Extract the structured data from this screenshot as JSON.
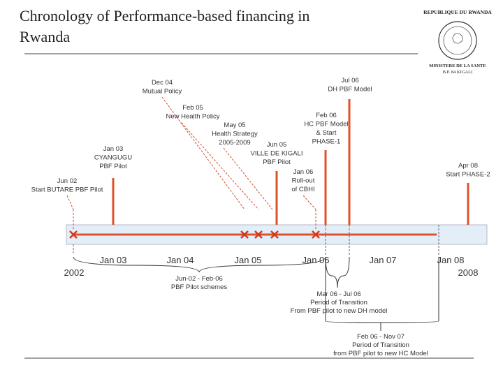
{
  "title": "Chronology of Performance-based financing in Rwanda",
  "emblem": {
    "top": "REPUBLIQUE DU RWANDA",
    "ministry": "MINISTERE DE LA SANTE",
    "address": "B.P. 84 KIGALI"
  },
  "events": [
    [
      "Jun 02",
      "Start BUTARE PBF Pilot"
    ],
    [
      "Jan 03",
      "CYANGUGU",
      "PBF Pilot"
    ],
    [
      "Dec 04",
      "Mutual Policy"
    ],
    [
      "Feb 05",
      "New Health Policy"
    ],
    [
      "May 05",
      "Health Strategy",
      "2005-2009"
    ],
    [
      "Jun 05",
      "VILLE DE KIGALI",
      "PBF Pilot"
    ],
    [
      "Jan 06",
      "Roll-out",
      "of CBHI"
    ],
    [
      "Feb 06",
      "HC PBF Model",
      "& Start",
      "PHASE-1"
    ],
    [
      "Jul 06",
      "DH PBF Model"
    ],
    [
      "Apr 08",
      "Start PHASE-2"
    ]
  ],
  "axis_labels": [
    "Jan 03",
    "Jan 04",
    "Jan 05",
    "Jan 06",
    "Jan 07",
    "Jan 08"
  ],
  "year_labels": [
    "2002",
    "2008"
  ],
  "periods": [
    [
      "Jun-02 - Feb-06",
      "PBF Pilot schemes"
    ],
    [
      "Mar 06 - Jul 06",
      "Period of Transition",
      "From PBF pilot to new DH model"
    ],
    [
      "Feb 06 - Nov 07",
      "Period of Transition",
      "from PBF pilot to new HC Model"
    ]
  ]
}
